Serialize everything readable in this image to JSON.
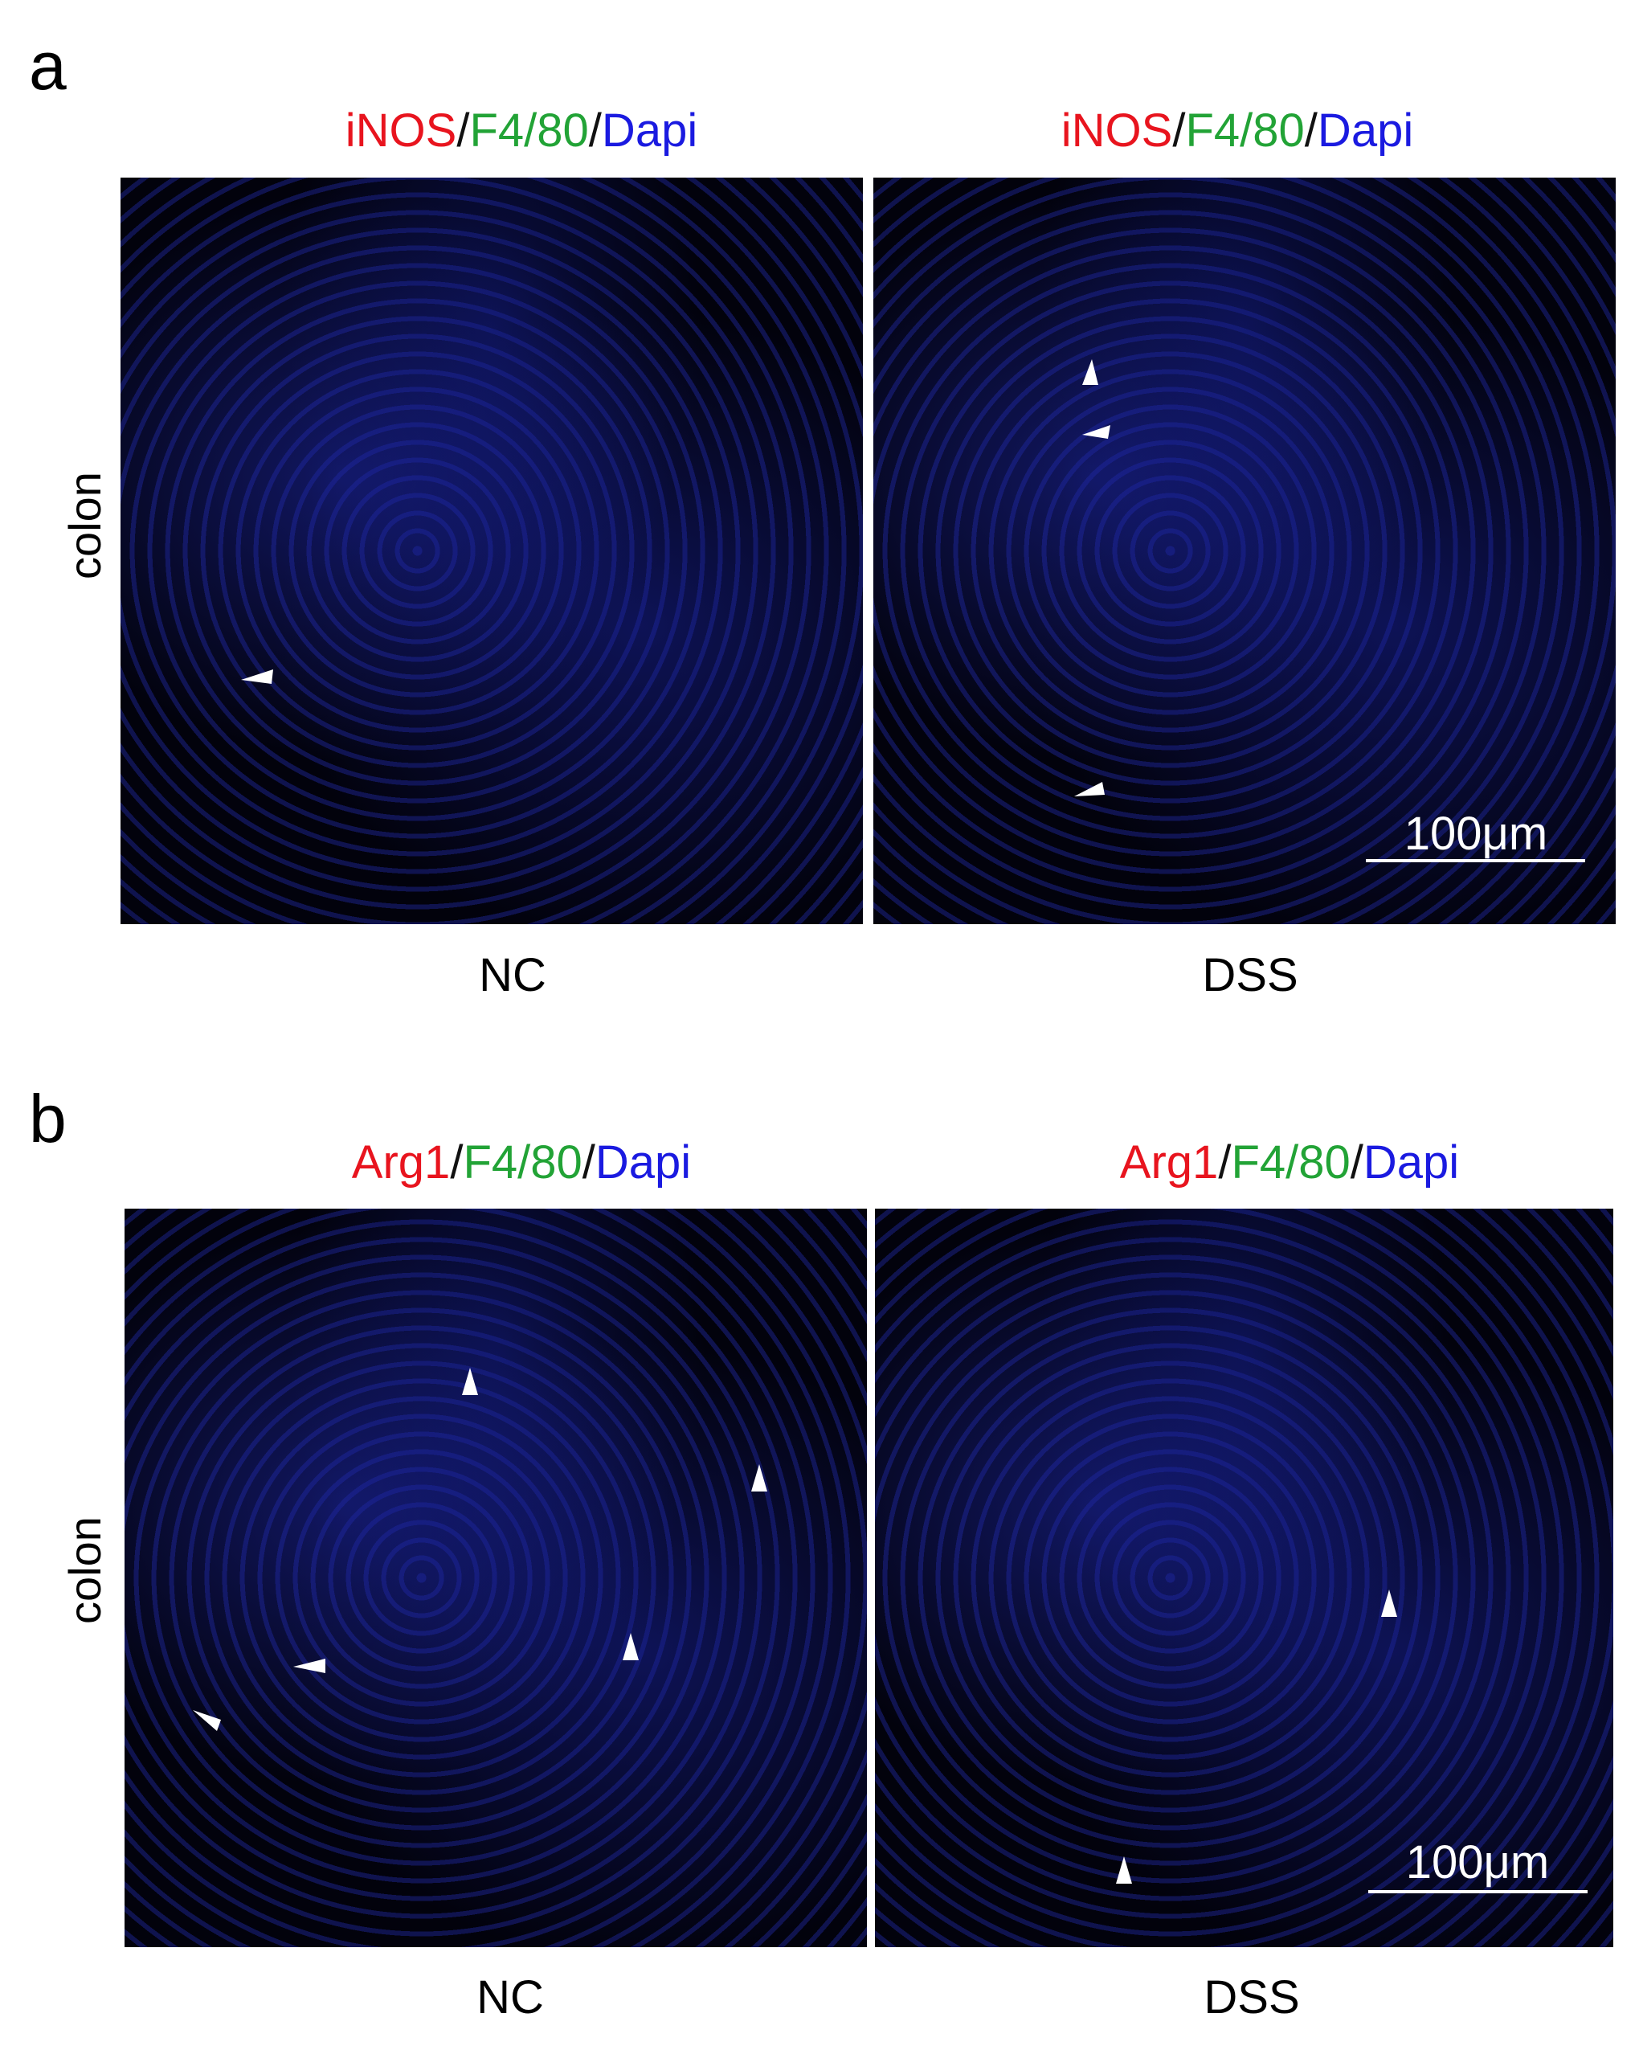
{
  "panels": [
    {
      "label": "a",
      "row_label": "colon",
      "images": [
        {
          "title": [
            "iNOS",
            "/",
            "F4/80",
            "/",
            "Dapi"
          ],
          "condition": "NC"
        },
        {
          "title": [
            "iNOS",
            "/",
            "F4/80",
            "/",
            "Dapi"
          ],
          "condition": "DSS",
          "scale_bar": "100μm"
        }
      ]
    },
    {
      "label": "b",
      "row_label": "colon",
      "images": [
        {
          "title": [
            "Arg1",
            "/",
            "F4/80",
            "/",
            "Dapi"
          ],
          "condition": "NC"
        },
        {
          "title": [
            "Arg1",
            "/",
            "F4/80",
            "/",
            "Dapi"
          ],
          "condition": "DSS",
          "scale_bar": "100μm"
        }
      ]
    }
  ]
}
